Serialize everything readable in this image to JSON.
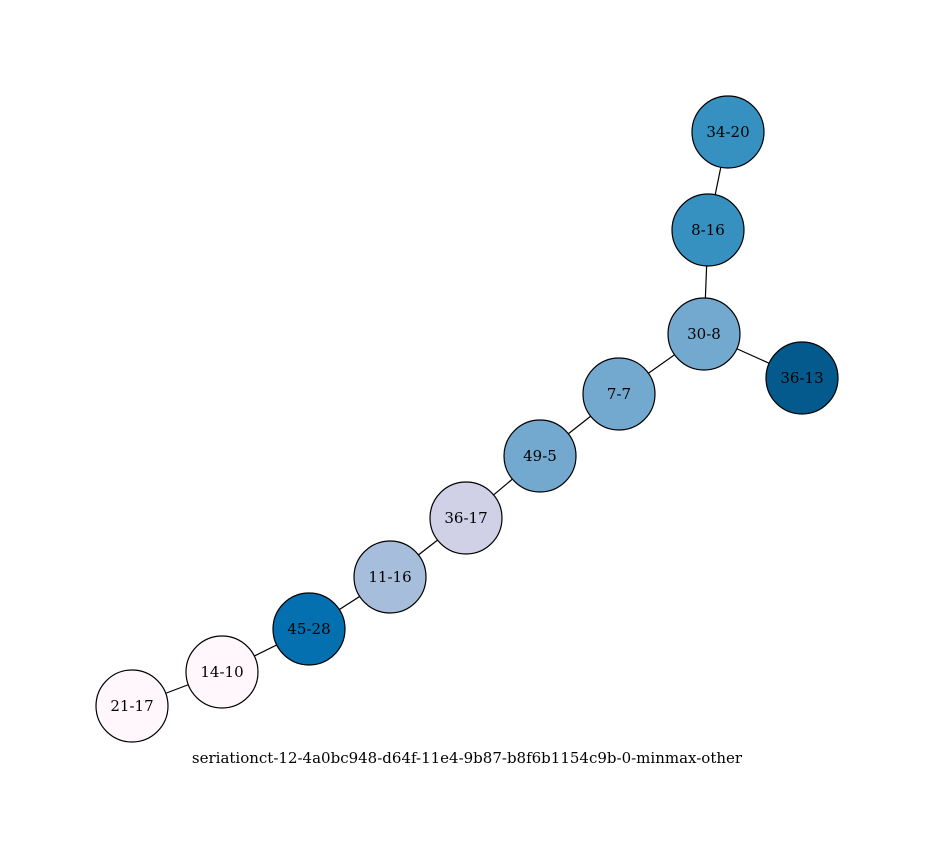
{
  "graph": {
    "caption": "seriationct-12-4a0bc948-d64f-11e4-9b87-b8f6b1154c9b-0-minmax-other",
    "nodes": [
      {
        "id": "34-20",
        "label": "34-20",
        "color": "#3690c0"
      },
      {
        "id": "8-16",
        "label": "8-16",
        "color": "#3690c0"
      },
      {
        "id": "30-8",
        "label": "30-8",
        "color": "#74a9cf"
      },
      {
        "id": "36-13",
        "label": "36-13",
        "color": "#045a8d"
      },
      {
        "id": "7-7",
        "label": "7-7",
        "color": "#74a9cf"
      },
      {
        "id": "49-5",
        "label": "49-5",
        "color": "#74a9cf"
      },
      {
        "id": "36-17",
        "label": "36-17",
        "color": "#d0d1e6"
      },
      {
        "id": "11-16",
        "label": "11-16",
        "color": "#a6bddb"
      },
      {
        "id": "45-28",
        "label": "45-28",
        "color": "#0570b0"
      },
      {
        "id": "14-10",
        "label": "14-10",
        "color": "#fff7fb"
      },
      {
        "id": "21-17",
        "label": "21-17",
        "color": "#fff7fb"
      }
    ],
    "edges": [
      [
        "34-20",
        "8-16"
      ],
      [
        "8-16",
        "30-8"
      ],
      [
        "30-8",
        "36-13"
      ],
      [
        "30-8",
        "7-7"
      ],
      [
        "7-7",
        "49-5"
      ],
      [
        "49-5",
        "36-17"
      ],
      [
        "36-17",
        "11-16"
      ],
      [
        "11-16",
        "45-28"
      ],
      [
        "45-28",
        "14-10"
      ],
      [
        "14-10",
        "21-17"
      ]
    ]
  }
}
